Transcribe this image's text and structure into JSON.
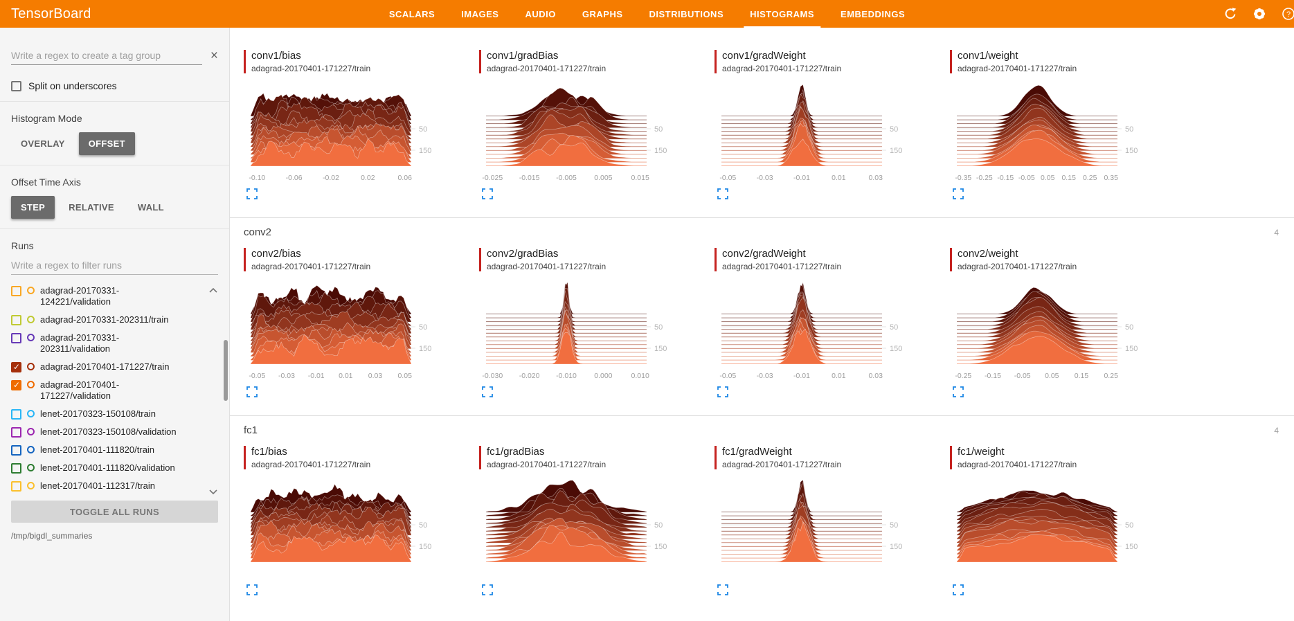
{
  "colors": {
    "header_bg": "#f57c00",
    "card_accent_red": "#c5221f",
    "expand_icon_blue": "#1e88e5",
    "ridge_back": "#4a0b05",
    "ridge_front": "#f16e3f"
  },
  "header": {
    "title": "TensorBoard",
    "tabs": [
      {
        "label": "SCALARS",
        "active": false
      },
      {
        "label": "IMAGES",
        "active": false
      },
      {
        "label": "AUDIO",
        "active": false
      },
      {
        "label": "GRAPHS",
        "active": false
      },
      {
        "label": "DISTRIBUTIONS",
        "active": false
      },
      {
        "label": "HISTOGRAMS",
        "active": true
      },
      {
        "label": "EMBEDDINGS",
        "active": false
      }
    ],
    "icons": [
      "refresh-icon",
      "settings-icon",
      "help-icon"
    ],
    "help_glyph": "?"
  },
  "sidebar": {
    "tag_filter_placeholder": "Write a regex to create a tag group",
    "clear_glyph": "×",
    "split_checkbox_label": "Split on underscores",
    "histogram_mode": {
      "label": "Histogram Mode",
      "options": [
        "OVERLAY",
        "OFFSET"
      ],
      "selected": "OFFSET"
    },
    "offset_time_axis": {
      "label": "Offset Time Axis",
      "options": [
        "STEP",
        "RELATIVE",
        "WALL"
      ],
      "selected": "STEP"
    },
    "runs": {
      "label": "Runs",
      "filter_placeholder": "Write a regex to filter runs",
      "items": [
        {
          "name": "adagrad-20170331-124221/validation",
          "checked": false,
          "color": "#f9a825"
        },
        {
          "name": "adagrad-20170331-202311/train",
          "checked": false,
          "color": "#c0ca33"
        },
        {
          "name": "adagrad-20170331-202311/validation",
          "checked": false,
          "color": "#673ab7"
        },
        {
          "name": "adagrad-20170401-171227/train",
          "checked": true,
          "color": "#a5300b"
        },
        {
          "name": "adagrad-20170401-171227/validation",
          "checked": true,
          "color": "#ef6c00"
        },
        {
          "name": "lenet-20170323-150108/train",
          "checked": false,
          "color": "#29b6f6"
        },
        {
          "name": "lenet-20170323-150108/validation",
          "checked": false,
          "color": "#9c27b0"
        },
        {
          "name": "lenet-20170401-111820/train",
          "checked": false,
          "color": "#1565c0"
        },
        {
          "name": "lenet-20170401-111820/validation",
          "checked": false,
          "color": "#2e7d32"
        },
        {
          "name": "lenet-20170401-112317/train",
          "checked": false,
          "color": "#fbc02d"
        }
      ],
      "toggle_all_label": "TOGGLE ALL RUNS",
      "log_dir": "/tmp/bigdl_summaries"
    }
  },
  "main": {
    "sections": [
      {
        "title": "",
        "count": "",
        "cards": [
          0,
          1,
          2,
          3
        ]
      },
      {
        "title": "conv2",
        "count": "4",
        "cards": [
          4,
          5,
          6,
          7
        ]
      },
      {
        "title": "fc1",
        "count": "4",
        "cards": [
          8,
          9,
          10,
          11
        ]
      }
    ]
  },
  "chart_data": {
    "type": "histogram-ridge",
    "mode": "OFFSET",
    "time_axis": "STEP",
    "layers": 14,
    "step_axis_side": "right",
    "charts": [
      {
        "title": "conv1/bias",
        "run": "adagrad-20170401-171227/train",
        "shape": "noisy",
        "seed": 3,
        "w": 1,
        "x_ticks": [
          "-0.10",
          "-0.06",
          "-0.02",
          "0.02",
          "0.06"
        ],
        "y_ticks": [
          "50",
          "150"
        ]
      },
      {
        "title": "conv1/gradBias",
        "run": "adagrad-20170401-171227/train",
        "shape": "mound",
        "seed": 7,
        "w": 1,
        "x_ticks": [
          "-0.025",
          "-0.015",
          "-0.005",
          "0.005",
          "0.015"
        ],
        "y_ticks": [
          "50",
          "150"
        ]
      },
      {
        "title": "conv1/gradWeight",
        "run": "adagrad-20170401-171227/train",
        "shape": "spike",
        "seed": 11,
        "w": 1,
        "x_ticks": [
          "-0.05",
          "-0.03",
          "-0.01",
          "0.01",
          "0.03"
        ],
        "y_ticks": [
          "50",
          "150"
        ]
      },
      {
        "title": "conv1/weight",
        "run": "adagrad-20170401-171227/train",
        "shape": "bell",
        "seed": 13,
        "w": 1,
        "x_ticks": [
          "-0.35",
          "-0.25",
          "-0.15",
          "-0.05",
          "0.05",
          "0.15",
          "0.25",
          "0.35"
        ],
        "y_ticks": [
          "50",
          "150"
        ]
      },
      {
        "title": "conv2/bias",
        "run": "adagrad-20170401-171227/train",
        "shape": "noisy",
        "seed": 17,
        "w": 1,
        "x_ticks": [
          "-0.05",
          "-0.03",
          "-0.01",
          "0.01",
          "0.03",
          "0.05"
        ],
        "y_ticks": [
          "50",
          "150"
        ]
      },
      {
        "title": "conv2/gradBias",
        "run": "adagrad-20170401-171227/train",
        "shape": "needle",
        "seed": 19,
        "w": 1,
        "x_ticks": [
          "-0.030",
          "-0.020",
          "-0.010",
          "0.000",
          "0.010"
        ],
        "y_ticks": [
          "50",
          "150"
        ]
      },
      {
        "title": "conv2/gradWeight",
        "run": "adagrad-20170401-171227/train",
        "shape": "spike",
        "seed": 23,
        "w": 1,
        "x_ticks": [
          "-0.05",
          "-0.03",
          "-0.01",
          "0.01",
          "0.03"
        ],
        "y_ticks": [
          "50",
          "150"
        ]
      },
      {
        "title": "conv2/weight",
        "run": "adagrad-20170401-171227/train",
        "shape": "bell",
        "seed": 29,
        "w": 1.05,
        "x_ticks": [
          "-0.25",
          "-0.15",
          "-0.05",
          "0.05",
          "0.15",
          "0.25"
        ],
        "y_ticks": [
          "50",
          "150"
        ]
      },
      {
        "title": "fc1/bias",
        "run": "adagrad-20170401-171227/train",
        "shape": "noisy",
        "seed": 31,
        "w": 1,
        "x_ticks": [],
        "y_ticks": [
          "50",
          "150"
        ]
      },
      {
        "title": "fc1/gradBias",
        "run": "adagrad-20170401-171227/train",
        "shape": "mound",
        "seed": 37,
        "w": 1.35,
        "x_ticks": [],
        "y_ticks": [
          "50",
          "150"
        ]
      },
      {
        "title": "fc1/gradWeight",
        "run": "adagrad-20170401-171227/train",
        "shape": "spike",
        "seed": 41,
        "w": 0.9,
        "x_ticks": [],
        "y_ticks": [
          "50",
          "150"
        ]
      },
      {
        "title": "fc1/weight",
        "run": "adagrad-20170401-171227/train",
        "shape": "plateau",
        "seed": 43,
        "w": 1.1,
        "x_ticks": [],
        "y_ticks": [
          "50",
          "150"
        ]
      }
    ]
  }
}
